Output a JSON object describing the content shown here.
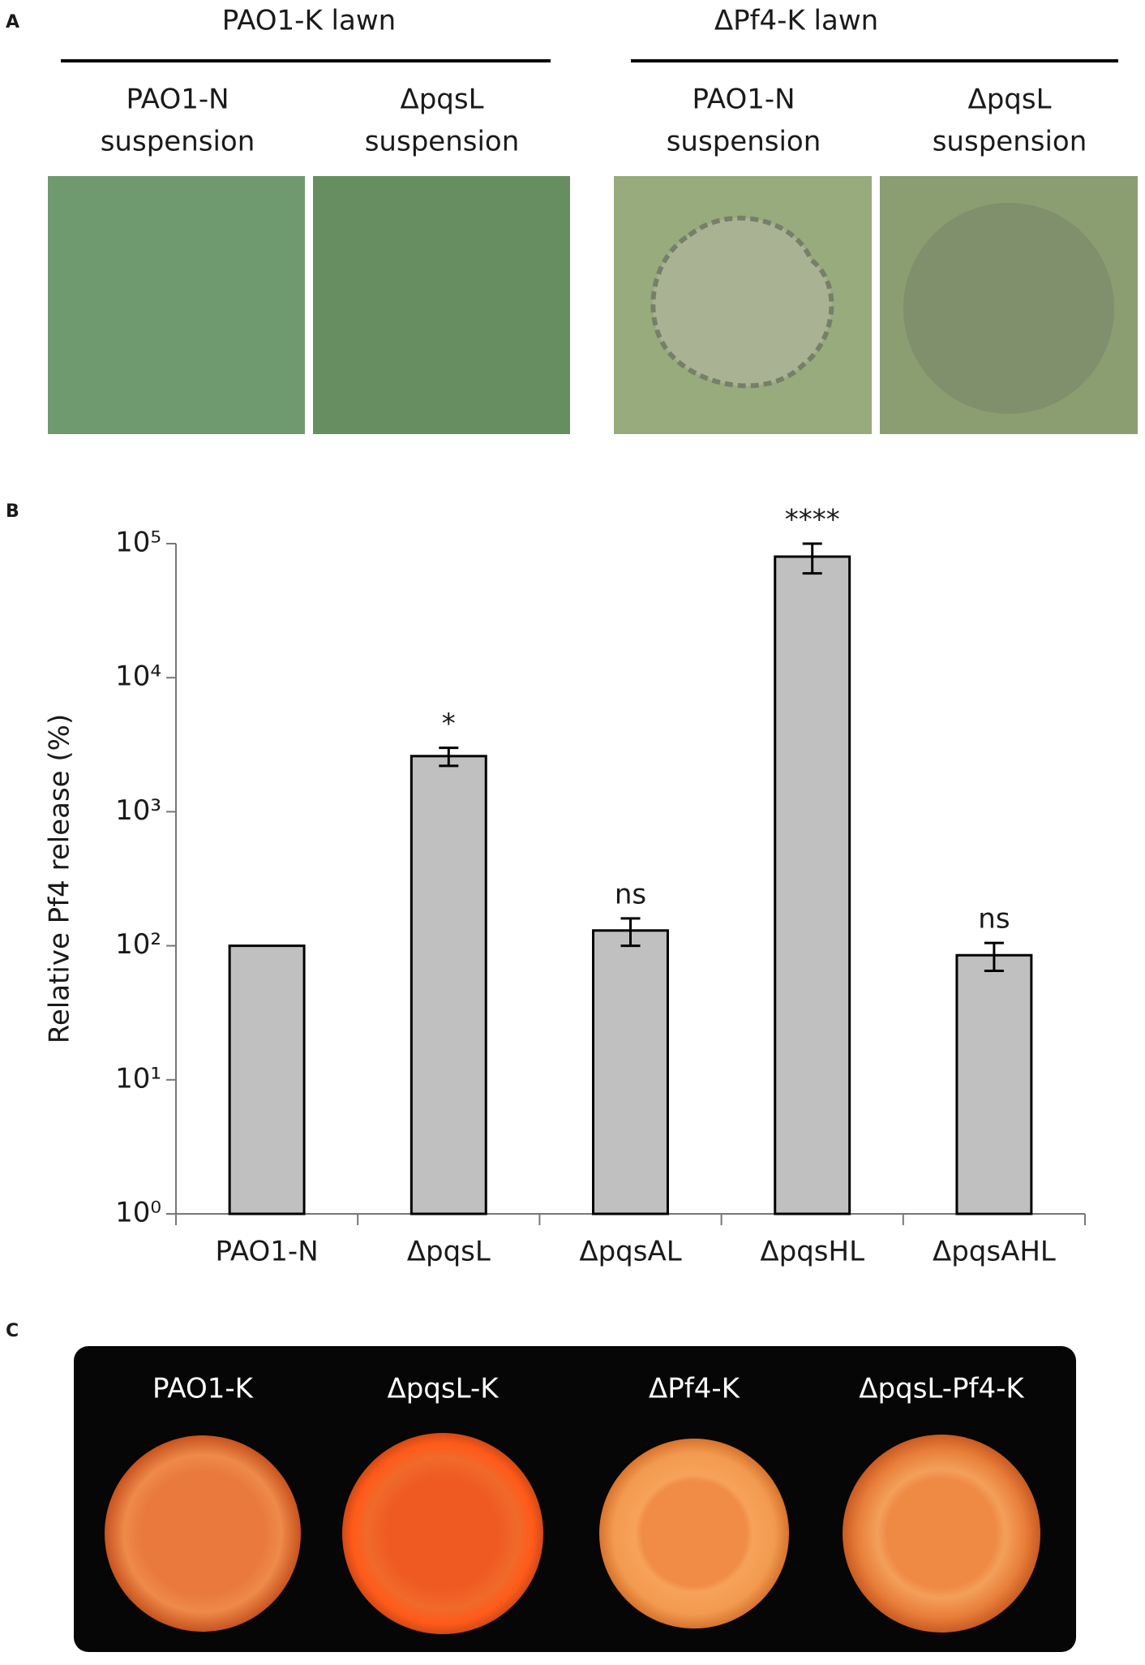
{
  "panel_a": {
    "label": "A",
    "groups": [
      {
        "title": "PAO1-K lawn",
        "columns": [
          [
            "PAO1-N",
            "suspension"
          ],
          [
            "ΔpqsL",
            "suspension"
          ]
        ]
      },
      {
        "title": "ΔPf4-K lawn",
        "columns": [
          [
            "PAO1-N",
            "suspension"
          ],
          [
            "ΔpqsL",
            "suspension"
          ]
        ]
      }
    ]
  },
  "chart_data": {
    "type": "bar",
    "panel_label": "B",
    "y_label": "Relative Pf4 release (%)",
    "categories": [
      "PAO1-N",
      "ΔpqsL",
      "ΔpqsAL",
      "ΔpqsHL",
      "ΔpqsAHL"
    ],
    "values": [
      100,
      2600,
      130,
      80000,
      85
    ],
    "errors": [
      null,
      400,
      30,
      20000,
      20
    ],
    "value_annotations": [
      null,
      "*",
      "ns",
      "****",
      "ns"
    ],
    "color": "#c0c0c0",
    "edge_color": "#000000",
    "log_scale": true,
    "ylim": [
      1,
      100000
    ],
    "yticks": [
      {
        "value": 1,
        "label": "10⁰"
      },
      {
        "value": 10,
        "label": "10¹"
      },
      {
        "value": 100,
        "label": "10²"
      },
      {
        "value": 1000,
        "label": "10³"
      },
      {
        "value": 10000,
        "label": "10⁴"
      },
      {
        "value": 100000,
        "label": "10⁵"
      }
    ],
    "grid": false
  },
  "panel_c": {
    "label": "C",
    "plates": [
      "PAO1-K",
      "ΔpqsL-K",
      "ΔPf4-K",
      "ΔpqsL-Pf4-K"
    ]
  }
}
